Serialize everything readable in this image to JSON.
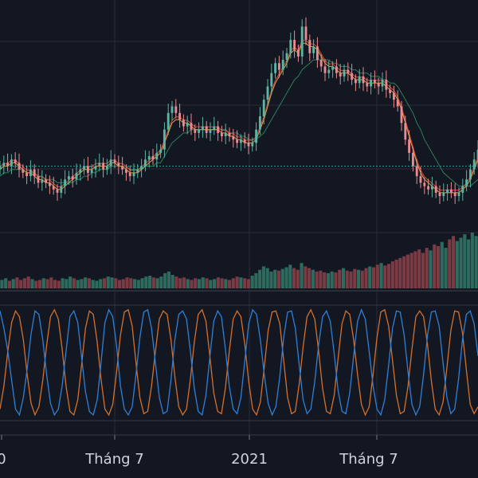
{
  "chart_data": {
    "type": "candlestick",
    "panes": [
      "price",
      "volume",
      "oscillator"
    ],
    "x_tick_labels": [
      "0",
      "Tháng 7",
      "2021",
      "Tháng 7"
    ],
    "price": {
      "closes": [
        50,
        51,
        50,
        52,
        51,
        49,
        48,
        47,
        49,
        47,
        45,
        46,
        45,
        44,
        43,
        42,
        44,
        46,
        47,
        46,
        48,
        49,
        50,
        48,
        49,
        50,
        51,
        49,
        50,
        52,
        51,
        50,
        49,
        48,
        47,
        48,
        49,
        50,
        52,
        53,
        52,
        54,
        55,
        61,
        66,
        68,
        66,
        64,
        62,
        63,
        61,
        60,
        61,
        62,
        60,
        61,
        62,
        60,
        59,
        60,
        59,
        58,
        57,
        58,
        57,
        56,
        57,
        61,
        65,
        70,
        74,
        78,
        81,
        79,
        82,
        84,
        88,
        85,
        83,
        92,
        88,
        84,
        86,
        82,
        80,
        78,
        79,
        80,
        78,
        77,
        79,
        78,
        76,
        75,
        77,
        75,
        74,
        76,
        75,
        74,
        76,
        73,
        72,
        70,
        68,
        63,
        58,
        54,
        50,
        47,
        45,
        44,
        43,
        44,
        42,
        41,
        42,
        43,
        42,
        41,
        42,
        44,
        46,
        49,
        52,
        55
      ],
      "ma_fast": [
        49,
        50,
        50,
        51,
        51,
        50,
        49,
        48,
        48,
        47,
        46,
        46,
        45,
        45,
        44,
        43,
        43,
        44,
        45,
        46,
        47,
        48,
        49,
        49,
        49,
        50,
        50,
        50,
        50,
        51,
        51,
        50,
        50,
        49,
        48,
        48,
        48,
        49,
        50,
        51,
        52,
        53,
        54,
        57,
        60,
        63,
        64,
        64,
        63,
        63,
        62,
        61,
        61,
        61,
        61,
        61,
        61,
        61,
        60,
        60,
        59,
        59,
        58,
        58,
        57,
        57,
        57,
        58,
        61,
        64,
        68,
        72,
        75,
        77,
        79,
        81,
        84,
        85,
        84,
        87,
        87,
        86,
        86,
        85,
        83,
        81,
        80,
        80,
        79,
        78,
        78,
        78,
        77,
        76,
        76,
        76,
        75,
        75,
        75,
        75,
        75,
        74,
        73,
        72,
        70,
        67,
        63,
        59,
        55,
        51,
        48,
        46,
        45,
        44,
        43,
        42,
        42,
        42,
        42,
        42,
        42,
        43,
        44,
        46,
        49,
        52
      ],
      "ma_slow": [
        47,
        48,
        48,
        49,
        49,
        49,
        49,
        48,
        48,
        48,
        47,
        47,
        46,
        46,
        46,
        45,
        45,
        45,
        45,
        45,
        46,
        46,
        47,
        47,
        48,
        48,
        49,
        49,
        49,
        50,
        50,
        50,
        50,
        50,
        49,
        49,
        49,
        49,
        50,
        50,
        50,
        51,
        51,
        53,
        55,
        57,
        58,
        59,
        60,
        60,
        61,
        61,
        61,
        61,
        61,
        61,
        61,
        61,
        61,
        61,
        60,
        60,
        60,
        59,
        59,
        58,
        58,
        58,
        59,
        60,
        62,
        64,
        66,
        68,
        70,
        72,
        74,
        76,
        77,
        79,
        80,
        81,
        82,
        82,
        82,
        82,
        82,
        81,
        81,
        80,
        80,
        80,
        79,
        79,
        78,
        78,
        78,
        77,
        77,
        77,
        76,
        76,
        75,
        75,
        74,
        72,
        70,
        68,
        66,
        63,
        61,
        58,
        56,
        54,
        52,
        50,
        48,
        47,
        46,
        45,
        44,
        44,
        44,
        44,
        45,
        46
      ],
      "reference_level": 50,
      "y_range": [
        30,
        100
      ]
    },
    "volume": [
      10,
      12,
      9,
      11,
      13,
      10,
      12,
      14,
      11,
      9,
      10,
      12,
      11,
      13,
      10,
      9,
      12,
      11,
      14,
      12,
      10,
      11,
      13,
      12,
      10,
      9,
      11,
      12,
      14,
      13,
      12,
      10,
      11,
      13,
      12,
      11,
      10,
      12,
      14,
      15,
      13,
      12,
      14,
      18,
      20,
      16,
      14,
      12,
      13,
      11,
      10,
      12,
      11,
      13,
      12,
      10,
      11,
      13,
      12,
      11,
      10,
      12,
      14,
      13,
      12,
      11,
      15,
      18,
      22,
      26,
      24,
      20,
      22,
      21,
      23,
      25,
      28,
      24,
      22,
      30,
      26,
      24,
      22,
      20,
      21,
      19,
      18,
      20,
      19,
      22,
      24,
      21,
      20,
      23,
      22,
      21,
      24,
      26,
      25,
      28,
      30,
      27,
      29,
      32,
      34,
      36,
      38,
      40,
      42,
      44,
      46,
      42,
      48,
      45,
      52,
      50,
      55,
      48,
      58,
      62,
      56,
      60,
      64,
      58,
      66,
      62
    ],
    "oscillator": {
      "blue": [
        95,
        80,
        60,
        35,
        10,
        5,
        20,
        45,
        75,
        95,
        92,
        70,
        40,
        15,
        5,
        10,
        30,
        60,
        90,
        95,
        85,
        55,
        25,
        8,
        5,
        18,
        50,
        85,
        96,
        90,
        65,
        30,
        10,
        5,
        12,
        40,
        72,
        94,
        96,
        80,
        50,
        20,
        6,
        8,
        35,
        70,
        92,
        95,
        88,
        60,
        28,
        8,
        5,
        22,
        55,
        86,
        95,
        90,
        62,
        30,
        10,
        6,
        20,
        52,
        84,
        96,
        92,
        70,
        40,
        15,
        5,
        12,
        38,
        72,
        94,
        95,
        80,
        48,
        18,
        6,
        10,
        34,
        66,
        90,
        95,
        86,
        58,
        26,
        8,
        6,
        24,
        56,
        86,
        96,
        88,
        60,
        30,
        10,
        5,
        18,
        48,
        80,
        95,
        94,
        74,
        42,
        14,
        5,
        12,
        40,
        74,
        94,
        95,
        82,
        50,
        20,
        6,
        10,
        36,
        70,
        92,
        95,
        84,
        56
      ],
      "orange": [
        10,
        30,
        60,
        85,
        95,
        90,
        70,
        40,
        15,
        5,
        12,
        35,
        65,
        90,
        96,
        88,
        62,
        30,
        8,
        5,
        18,
        48,
        80,
        95,
        92,
        68,
        36,
        10,
        5,
        14,
        42,
        74,
        94,
        96,
        82,
        50,
        20,
        6,
        8,
        30,
        60,
        88,
        95,
        92,
        70,
        38,
        12,
        5,
        10,
        36,
        68,
        92,
        96,
        86,
        56,
        24,
        8,
        6,
        28,
        60,
        88,
        95,
        90,
        66,
        34,
        10,
        5,
        16,
        46,
        78,
        94,
        95,
        84,
        52,
        20,
        6,
        8,
        32,
        64,
        90,
        96,
        88,
        60,
        28,
        8,
        6,
        22,
        54,
        84,
        95,
        92,
        70,
        40,
        14,
        5,
        12,
        40,
        72,
        94,
        96,
        82,
        52,
        22,
        6,
        8,
        30,
        62,
        90,
        95,
        90,
        66,
        34,
        10,
        5,
        16,
        46,
        78,
        95,
        94,
        76,
        44,
        14,
        6,
        12
      ],
      "y_range": [
        0,
        100
      ]
    }
  }
}
